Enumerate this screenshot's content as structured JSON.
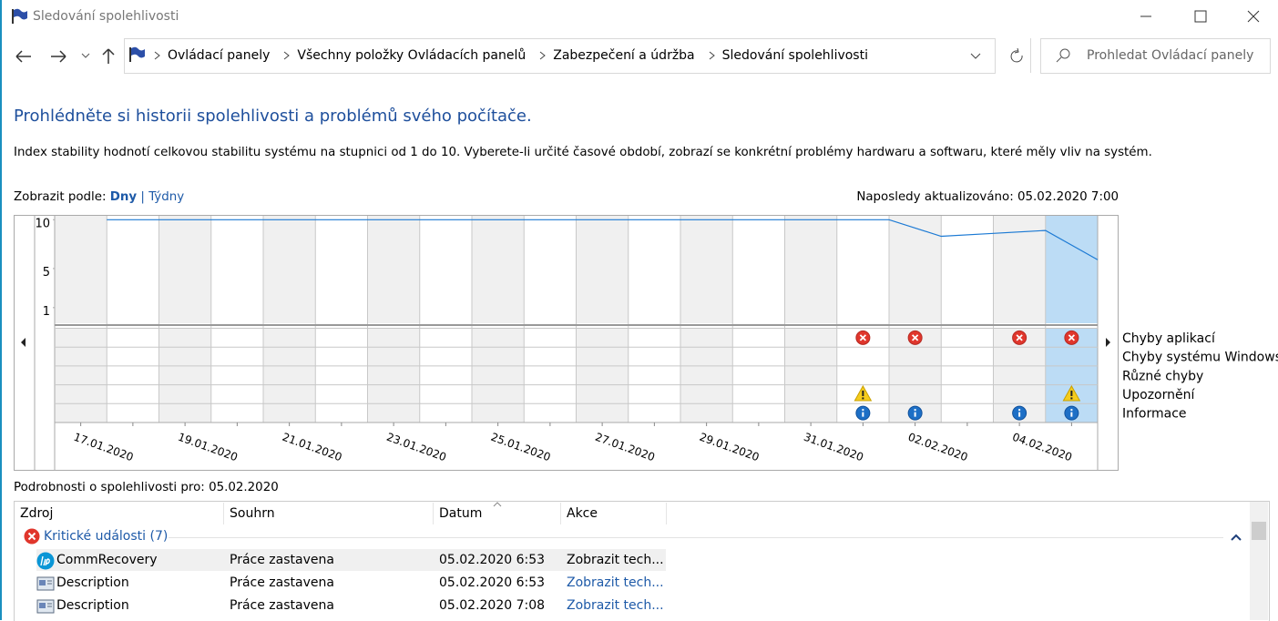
{
  "window": {
    "title": "Sledování spolehlivosti"
  },
  "address": {
    "breadcrumbs": [
      "Ovládací panely",
      "Všechny položky Ovládacích panelů",
      "Zabezpečení a údržba",
      "Sledování spolehlivosti"
    ],
    "search_placeholder": "Prohledat Ovládací panely"
  },
  "header": {
    "title": "Prohlédněte si historii spolehlivosti a problémů svého počítače.",
    "description": "Index stability hodnotí celkovou stabilitu systému na stupnici od 1 do 10. Vyberete-li určité časové období, zobrazí se konkrétní problémy hardwaru a softwaru, které měly vliv na systém."
  },
  "view": {
    "label": "Zobrazit podle:",
    "options": [
      "Dny",
      "Týdny"
    ],
    "separator": "|",
    "last_updated": "Naposledy aktualizováno: 05.02.2020 7:00"
  },
  "chart_data": {
    "type": "line",
    "categories": [
      "17.01.2020",
      null,
      "19.01.2020",
      null,
      "21.01.2020",
      null,
      "23.01.2020",
      null,
      "25.01.2020",
      null,
      "27.01.2020",
      null,
      "29.01.2020",
      null,
      "31.01.2020",
      null,
      "02.02.2020",
      null,
      "04.02.2020",
      null
    ],
    "values": [
      10,
      10,
      10,
      10,
      10,
      10,
      10,
      10,
      10,
      10,
      10,
      10,
      10,
      10,
      10,
      10,
      8.3,
      8.6,
      8.9,
      5.9
    ],
    "color": "#1c7ad4",
    "ylim": [
      -0.6,
      10.4
    ],
    "yticks": [
      1,
      5,
      10
    ],
    "event_rows": [
      {
        "name": "Chyby aplikací",
        "icon": "critical",
        "values": [
          null,
          null,
          null,
          null,
          null,
          null,
          null,
          null,
          null,
          null,
          null,
          null,
          null,
          null,
          null,
          1,
          1,
          null,
          1,
          1
        ]
      },
      {
        "name": "Chyby systému Windows",
        "icon": "critical",
        "values": [
          null,
          null,
          null,
          null,
          null,
          null,
          null,
          null,
          null,
          null,
          null,
          null,
          null,
          null,
          null,
          null,
          null,
          null,
          null,
          null
        ]
      },
      {
        "name": "Různé chyby",
        "icon": "critical",
        "values": [
          null,
          null,
          null,
          null,
          null,
          null,
          null,
          null,
          null,
          null,
          null,
          null,
          null,
          null,
          null,
          null,
          null,
          null,
          null,
          null
        ]
      },
      {
        "name": "Upozornění",
        "icon": "warning",
        "values": [
          null,
          null,
          null,
          null,
          null,
          null,
          null,
          null,
          null,
          null,
          null,
          null,
          null,
          null,
          null,
          1,
          null,
          null,
          null,
          1
        ]
      },
      {
        "name": "Informace",
        "icon": "info",
        "values": [
          null,
          null,
          null,
          null,
          null,
          null,
          null,
          null,
          null,
          null,
          null,
          null,
          null,
          null,
          null,
          1,
          1,
          null,
          1,
          1
        ]
      }
    ]
  },
  "details": {
    "title": "Podrobnosti o spolehlivosti pro: 05.02.2020",
    "columns": [
      "Zdroj",
      "Souhrn",
      "Datum",
      "Akce"
    ],
    "group": "Kritické události (7)",
    "rows": [
      [
        "CommRecovery",
        "Práce zastavena",
        "05.02.2020 6:53",
        "Zobrazit tech..."
      ],
      [
        "Description",
        "Práce zastavena",
        "05.02.2020 6:53",
        "Zobrazit tech..."
      ],
      [
        "Description",
        "Práce zastavena",
        "05.02.2020 7:08",
        "Zobrazit tech..."
      ]
    ]
  }
}
